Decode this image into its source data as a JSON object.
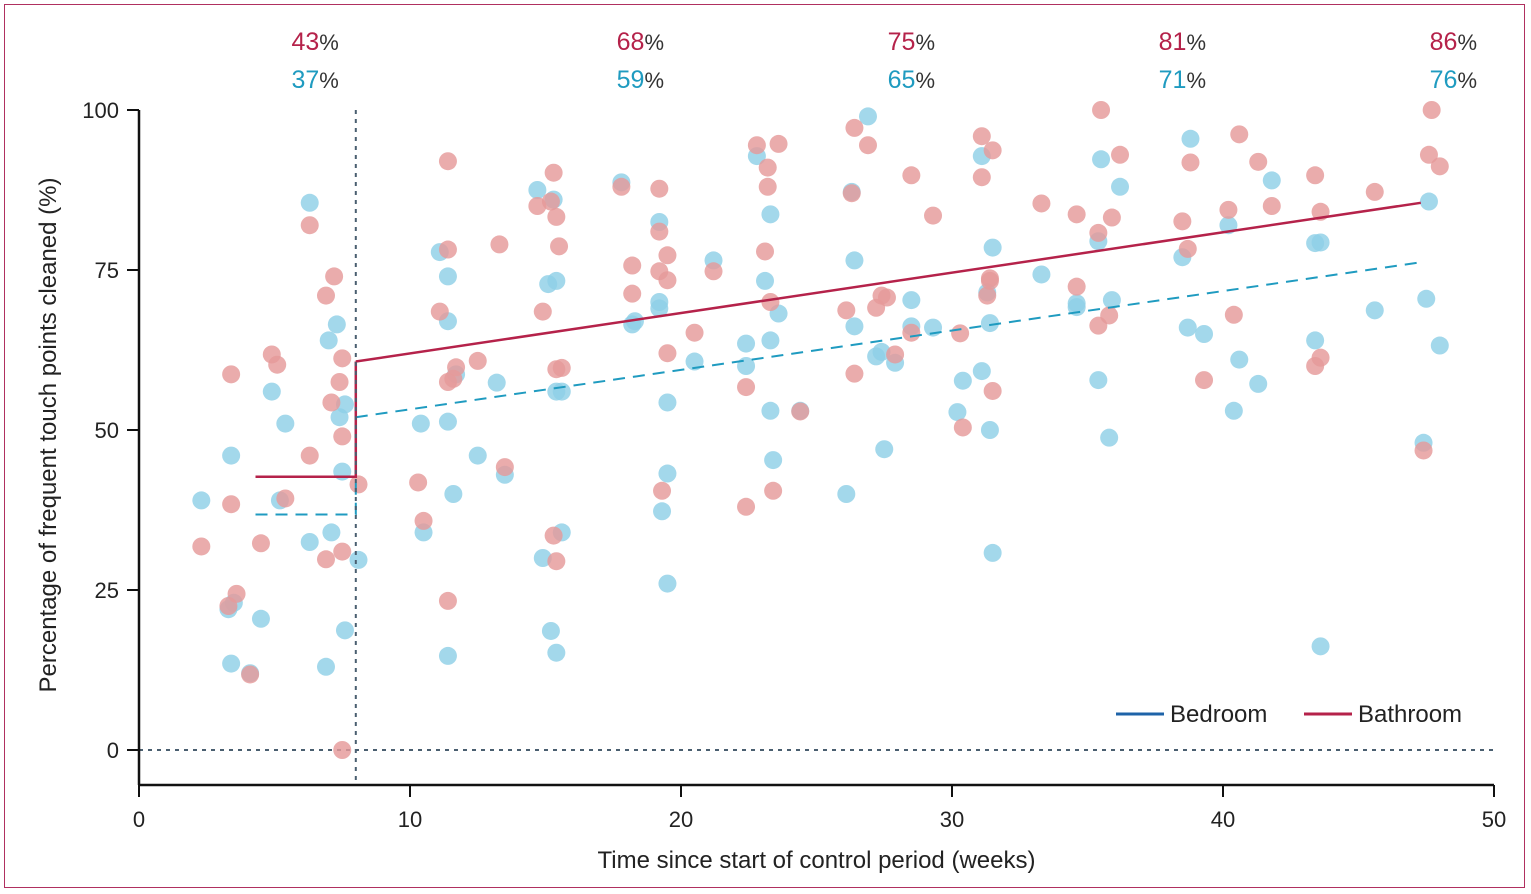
{
  "chart_data": {
    "type": "scatter",
    "xlabel": "Time since start of control period (weeks)",
    "ylabel": "Percentage of frequent touch points cleaned (%)",
    "xlim": [
      0,
      50
    ],
    "ylim": [
      0,
      100
    ],
    "x_ticks": [
      "0",
      "10",
      "20",
      "30",
      "40",
      "50"
    ],
    "y_ticks": [
      "0",
      "25",
      "50",
      "75",
      "100"
    ],
    "grid": false,
    "legend_position": "bottom-right",
    "intervention_week": 8,
    "colors": {
      "bedroom": "#1f9bc0",
      "bathroom": "#b5224a",
      "bedroom_point": "#8fd0e6",
      "bathroom_point": "#e59a9a",
      "bedroom_line": "#1e63a8",
      "reference": "#4a5f70"
    },
    "top_labels": [
      {
        "week": 6.5,
        "bathroom": "43",
        "bedroom": "37"
      },
      {
        "week": 18.5,
        "bathroom": "68",
        "bedroom": "59"
      },
      {
        "week": 28.5,
        "bathroom": "75",
        "bedroom": "65"
      },
      {
        "week": 38.5,
        "bathroom": "81",
        "bedroom": "71"
      },
      {
        "week": 48.5,
        "bathroom": "86",
        "bedroom": "76"
      }
    ],
    "percent_sign": "%",
    "series": [
      {
        "name": "Bedroom",
        "points": [
          [
            2.3,
            39
          ],
          [
            3.3,
            22
          ],
          [
            3.5,
            23
          ],
          [
            3.4,
            13.5
          ],
          [
            3.4,
            46
          ],
          [
            4.1,
            12
          ],
          [
            4.5,
            20.5
          ],
          [
            4.9,
            56
          ],
          [
            5.2,
            39
          ],
          [
            5.4,
            51
          ],
          [
            6.3,
            85.5
          ],
          [
            6.3,
            32.5
          ],
          [
            6.9,
            13
          ],
          [
            7.0,
            64
          ],
          [
            7.1,
            34
          ],
          [
            7.3,
            66.5
          ],
          [
            7.4,
            52
          ],
          [
            7.6,
            54
          ],
          [
            7.5,
            43.5
          ],
          [
            7.6,
            18.7
          ],
          [
            8.1,
            29.7
          ],
          [
            10.4,
            51
          ],
          [
            10.5,
            34
          ],
          [
            11.1,
            77.8
          ],
          [
            11.4,
            67
          ],
          [
            11.4,
            74
          ],
          [
            11.4,
            51.3
          ],
          [
            11.4,
            14.7
          ],
          [
            11.6,
            40
          ],
          [
            11.7,
            58.7
          ],
          [
            12.5,
            46
          ],
          [
            13.2,
            57.4
          ],
          [
            13.5,
            43
          ],
          [
            14.7,
            87.5
          ],
          [
            14.9,
            30
          ],
          [
            15.1,
            72.8
          ],
          [
            15.3,
            86
          ],
          [
            15.2,
            18.6
          ],
          [
            15.4,
            56
          ],
          [
            15.4,
            73.3
          ],
          [
            15.4,
            15.2
          ],
          [
            15.6,
            34
          ],
          [
            15.6,
            56
          ],
          [
            17.8,
            88.7
          ],
          [
            18.2,
            66.5
          ],
          [
            18.3,
            67
          ],
          [
            19.2,
            82.5
          ],
          [
            19.2,
            70
          ],
          [
            19.2,
            69
          ],
          [
            19.3,
            37.3
          ],
          [
            19.5,
            54.3
          ],
          [
            19.5,
            43.2
          ],
          [
            19.5,
            26
          ],
          [
            20.5,
            60.7
          ],
          [
            21.2,
            76.5
          ],
          [
            22.4,
            63.5
          ],
          [
            22.4,
            60
          ],
          [
            22.8,
            92.8
          ],
          [
            23.1,
            73.3
          ],
          [
            23.3,
            53
          ],
          [
            23.3,
            64
          ],
          [
            23.3,
            83.7
          ],
          [
            23.4,
            45.3
          ],
          [
            23.6,
            68.2
          ],
          [
            24.4,
            53
          ],
          [
            26.1,
            40
          ],
          [
            26.3,
            87.2
          ],
          [
            26.4,
            76.5
          ],
          [
            26.4,
            66.2
          ],
          [
            26.9,
            99
          ],
          [
            27.2,
            61.5
          ],
          [
            27.4,
            62.2
          ],
          [
            27.5,
            47
          ],
          [
            27.9,
            60.5
          ],
          [
            28.5,
            70.3
          ],
          [
            28.5,
            66.2
          ],
          [
            29.3,
            66
          ],
          [
            30.2,
            52.8
          ],
          [
            30.4,
            57.7
          ],
          [
            31.1,
            92.8
          ],
          [
            31.1,
            59.2
          ],
          [
            31.3,
            71.5
          ],
          [
            31.4,
            66.7
          ],
          [
            31.4,
            50
          ],
          [
            31.5,
            78.5
          ],
          [
            31.5,
            30.8
          ],
          [
            33.3,
            74.3
          ],
          [
            34.6,
            69.2
          ],
          [
            34.6,
            69.8
          ],
          [
            35.4,
            57.8
          ],
          [
            35.4,
            79.5
          ],
          [
            35.5,
            92.3
          ],
          [
            35.8,
            48.8
          ],
          [
            35.9,
            70.3
          ],
          [
            36.2,
            88
          ],
          [
            38.5,
            77
          ],
          [
            38.7,
            66
          ],
          [
            38.8,
            95.5
          ],
          [
            39.3,
            65
          ],
          [
            40.2,
            82
          ],
          [
            40.4,
            53
          ],
          [
            40.6,
            61
          ],
          [
            41.3,
            57.2
          ],
          [
            41.8,
            89
          ],
          [
            43.4,
            79.2
          ],
          [
            43.4,
            64
          ],
          [
            43.6,
            79.3
          ],
          [
            43.6,
            16.2
          ],
          [
            45.6,
            68.7
          ],
          [
            47.4,
            48
          ],
          [
            47.5,
            70.5
          ],
          [
            47.6,
            85.7
          ],
          [
            48.0,
            63.2
          ]
        ]
      },
      {
        "name": "Bathroom",
        "points": [
          [
            2.3,
            31.8
          ],
          [
            3.3,
            22.5
          ],
          [
            3.4,
            58.7
          ],
          [
            3.4,
            38.4
          ],
          [
            3.6,
            24.4
          ],
          [
            4.1,
            11.8
          ],
          [
            4.5,
            32.3
          ],
          [
            4.9,
            61.8
          ],
          [
            5.1,
            60.2
          ],
          [
            5.4,
            39.3
          ],
          [
            6.3,
            82
          ],
          [
            6.3,
            46
          ],
          [
            6.9,
            29.8
          ],
          [
            6.9,
            71
          ],
          [
            7.1,
            54.3
          ],
          [
            7.2,
            74
          ],
          [
            7.4,
            57.5
          ],
          [
            7.5,
            61.2
          ],
          [
            7.5,
            49
          ],
          [
            7.5,
            31
          ],
          [
            7.5,
            0
          ],
          [
            8.1,
            41.5
          ],
          [
            10.3,
            41.8
          ],
          [
            10.5,
            35.8
          ],
          [
            11.1,
            68.5
          ],
          [
            11.4,
            92
          ],
          [
            11.4,
            78.2
          ],
          [
            11.4,
            57.5
          ],
          [
            11.4,
            23.3
          ],
          [
            11.6,
            58
          ],
          [
            11.7,
            59.8
          ],
          [
            12.5,
            60.8
          ],
          [
            13.3,
            79
          ],
          [
            13.5,
            44.2
          ],
          [
            14.7,
            85
          ],
          [
            14.9,
            68.5
          ],
          [
            15.2,
            85.7
          ],
          [
            15.3,
            90.2
          ],
          [
            15.3,
            33.5
          ],
          [
            15.4,
            83.3
          ],
          [
            15.4,
            59.5
          ],
          [
            15.4,
            29.5
          ],
          [
            15.5,
            78.7
          ],
          [
            15.6,
            59.7
          ],
          [
            17.8,
            88
          ],
          [
            18.2,
            75.7
          ],
          [
            18.2,
            71.3
          ],
          [
            19.2,
            87.7
          ],
          [
            19.2,
            81
          ],
          [
            19.2,
            74.8
          ],
          [
            19.3,
            40.5
          ],
          [
            19.5,
            77.3
          ],
          [
            19.5,
            73.4
          ],
          [
            19.5,
            62
          ],
          [
            20.5,
            65.2
          ],
          [
            21.2,
            74.8
          ],
          [
            22.4,
            56.7
          ],
          [
            22.4,
            38
          ],
          [
            22.8,
            94.5
          ],
          [
            23.1,
            77.9
          ],
          [
            23.2,
            91
          ],
          [
            23.2,
            88
          ],
          [
            23.3,
            70
          ],
          [
            23.4,
            40.5
          ],
          [
            23.6,
            94.7
          ],
          [
            24.4,
            52.9
          ],
          [
            26.1,
            68.7
          ],
          [
            26.3,
            87
          ],
          [
            26.4,
            97.2
          ],
          [
            26.4,
            58.8
          ],
          [
            26.9,
            94.5
          ],
          [
            27.2,
            69.1
          ],
          [
            27.4,
            71
          ],
          [
            27.6,
            70.7
          ],
          [
            27.9,
            61.8
          ],
          [
            28.5,
            89.8
          ],
          [
            28.5,
            65.2
          ],
          [
            29.3,
            83.5
          ],
          [
            30.3,
            65.1
          ],
          [
            30.4,
            50.4
          ],
          [
            31.1,
            95.9
          ],
          [
            31.1,
            89.5
          ],
          [
            31.3,
            71
          ],
          [
            31.4,
            73.7
          ],
          [
            31.4,
            73.3
          ],
          [
            31.5,
            93.7
          ],
          [
            31.5,
            56.1
          ],
          [
            33.3,
            85.4
          ],
          [
            34.6,
            83.7
          ],
          [
            34.6,
            72.4
          ],
          [
            35.4,
            80.8
          ],
          [
            35.4,
            66.3
          ],
          [
            35.5,
            100
          ],
          [
            35.8,
            67.9
          ],
          [
            35.9,
            83.2
          ],
          [
            36.2,
            93
          ],
          [
            38.5,
            82.6
          ],
          [
            38.7,
            78.3
          ],
          [
            38.8,
            91.8
          ],
          [
            39.3,
            57.8
          ],
          [
            40.2,
            84.4
          ],
          [
            40.4,
            68
          ],
          [
            40.6,
            96.2
          ],
          [
            41.3,
            91.9
          ],
          [
            41.8,
            85
          ],
          [
            43.4,
            89.8
          ],
          [
            43.4,
            60
          ],
          [
            43.6,
            84.1
          ],
          [
            43.6,
            61.3
          ],
          [
            45.6,
            87.2
          ],
          [
            47.4,
            46.8
          ],
          [
            47.6,
            93
          ],
          [
            47.7,
            100
          ],
          [
            48.0,
            91.2
          ]
        ]
      }
    ],
    "trend_lines": [
      {
        "name": "Bedroom",
        "style": "dashed",
        "segments": [
          [
            [
              4.3,
              36.8
            ],
            [
              8.0,
              36.8
            ],
            [
              8.0,
              52.0
            ]
          ],
          [
            [
              8.0,
              52.0
            ],
            [
              47.3,
              76.2
            ]
          ]
        ]
      },
      {
        "name": "Bathroom",
        "style": "solid",
        "segments": [
          [
            [
              4.3,
              42.7
            ],
            [
              8.0,
              42.7
            ],
            [
              8.0,
              60.7
            ]
          ],
          [
            [
              8.0,
              60.7
            ],
            [
              47.3,
              85.5
            ]
          ]
        ]
      }
    ]
  }
}
